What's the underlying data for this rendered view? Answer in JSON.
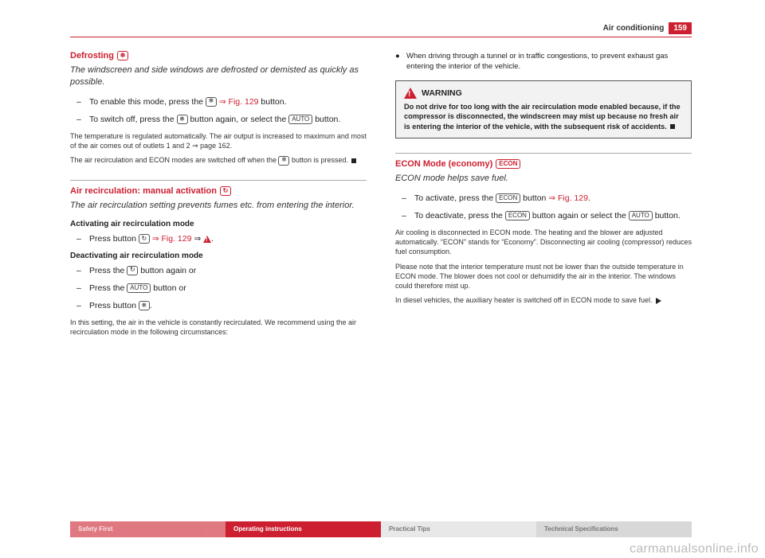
{
  "header": {
    "section": "Air conditioning",
    "page": "159"
  },
  "rule_color": "#cc1f2f",
  "left": {
    "sec1": {
      "title": "Defrosting",
      "title_icon": "defrost-icon",
      "intro": "The windscreen and side windows are defrosted or demisted as quickly as possible.",
      "step1_a": "To enable this mode, press the ",
      "step1_link": "⇒ Fig. 129",
      "step1_b": " button.",
      "step2_a": "To switch off, press the ",
      "step2_b": " button again, or select the ",
      "step2_auto": "AUTO",
      "step2_c": " button.",
      "p1": "The temperature is regulated automatically. The air output is increased to maximum and most of the air comes out of outlets 1 and 2  ⇒ page 162.",
      "p2_a": "The air recirculation and ECON modes are switched off when the ",
      "p2_b": " button is pressed."
    },
    "sec2": {
      "title": "Air recirculation: manual activation",
      "title_icon": "recirc-icon",
      "intro": "The air recirculation setting prevents fumes etc. from entering the interior.",
      "sub1": "Activating air recirculation mode",
      "s1_a": "Press button ",
      "s1_link": "⇒ Fig. 129",
      "s1_b": " ⇒ ",
      "sub2": "Deactivating air recirculation mode",
      "s2_a": "Press the ",
      "s2_b": " button again or",
      "s3_a": "Press the ",
      "s3_auto": "AUTO",
      "s3_b": " button or",
      "s4_a": "Press button ",
      "s4_b": ".",
      "p1": "In this setting, the air in the vehicle is constantly recirculated. We recommend using the air recirculation mode in the following circumstances:"
    }
  },
  "right": {
    "bullet1": "When driving through a tunnel or in traffic congestions, to prevent exhaust gas entering the interior of the vehicle.",
    "warn": {
      "title": "WARNING",
      "text": "Do not drive for too long with the air recirculation mode enabled because, if the compressor is disconnected, the windscreen may mist up because no fresh air is entering the interior of the vehicle, with the subsequent risk of accidents."
    },
    "sec3": {
      "title": "ECON Mode (economy)",
      "title_btn": "ECON",
      "intro": "ECON mode helps save fuel.",
      "s1_a": "To activate, press the ",
      "s1_btn": "ECON",
      "s1_b": " button ",
      "s1_link": "⇒ Fig. 129",
      "s1_c": ".",
      "s2_a": "To deactivate, press the ",
      "s2_btn": "ECON",
      "s2_b": " button again or select the ",
      "s2_auto": "AUTO",
      "s2_c": " button.",
      "p1": "Air cooling is disconnected in ECON mode. The heating and the blower are adjusted automatically. “ECON” stands for “Economy”. Disconnecting air cooling (compressor) reduces fuel consumption.",
      "p2": "Please note that the interior temperature must not be lower than the outside temperature in ECON mode. The blower does not cool or dehumidify the air in the interior. The windows could therefore mist up.",
      "p3": "In diesel vehicles, the auxiliary heater is switched off in ECON mode to save fuel."
    }
  },
  "footer": {
    "c1": "Safety First",
    "c2": "Operating instructions",
    "c3": "Practical Tips",
    "c4": "Technical Specifications"
  },
  "watermark": "carmanualsonline.info"
}
